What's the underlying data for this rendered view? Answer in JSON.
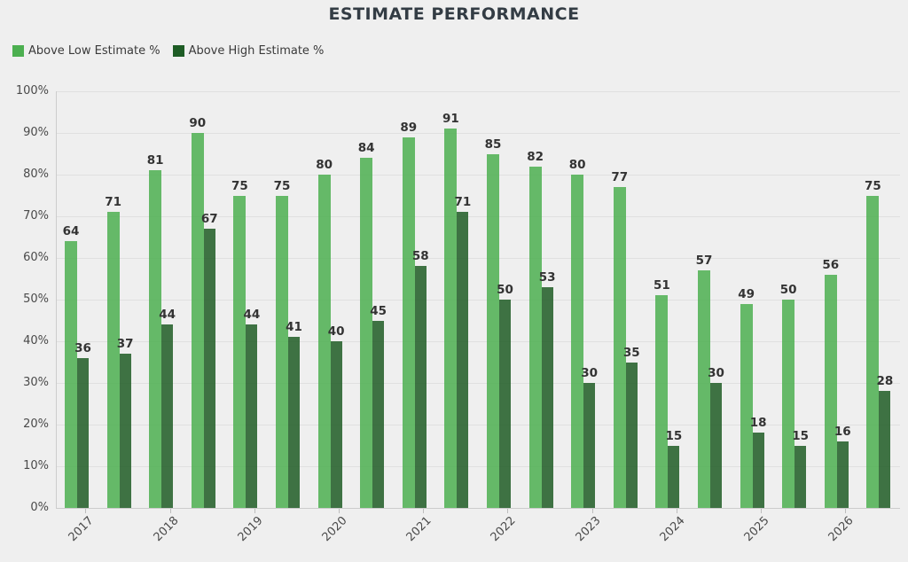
{
  "title": "ESTIMATE PERFORMANCE",
  "chart_data": {
    "type": "bar",
    "title": "ESTIMATE PERFORMANCE",
    "legend_position": "top-left",
    "grid": true,
    "ylim": [
      0,
      100
    ],
    "y_tick_labels": [
      "0%",
      "10%",
      "20%",
      "30%",
      "40%",
      "50%",
      "60%",
      "70%",
      "80%",
      "90%",
      "100%"
    ],
    "x_tick_labels": [
      "2017",
      "2018",
      "2019",
      "2020",
      "2021",
      "2022",
      "2023",
      "2024",
      "2025",
      "2026"
    ],
    "bars_per_year": 2,
    "bar_value_labels": true,
    "series": [
      {
        "name": "Above Low Estimate %",
        "color": "#4caf50",
        "values": [
          64,
          71,
          81,
          90,
          75,
          75,
          80,
          84,
          89,
          91,
          85,
          82,
          80,
          77,
          51,
          57,
          49,
          50,
          56,
          75
        ]
      },
      {
        "name": "Above High Estimate %",
        "color": "#1e5c25",
        "values": [
          36,
          37,
          44,
          67,
          44,
          41,
          40,
          45,
          58,
          71,
          50,
          53,
          30,
          35,
          15,
          30,
          18,
          15,
          16,
          28
        ]
      }
    ],
    "colors": {
      "background": "#efefef",
      "gridline": "#e0e0e0",
      "axis": "#cccccc",
      "title_text": "#333c44",
      "label_text": "#333333"
    }
  }
}
